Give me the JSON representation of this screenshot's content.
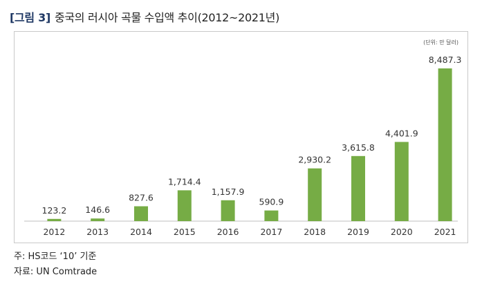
{
  "figure": {
    "label": "[그림 3]",
    "title": "중국의 러시아 곡물 수입액 추이(2012~2021년)"
  },
  "unit_label": "(단위: 만 달러)",
  "notes": {
    "note": "주: HS코드 ‘10’ 기준",
    "source": "자료: UN Comtrade"
  },
  "colors": {
    "bar": "#76ac45",
    "axis": "#bfbfbf",
    "frame": "#c9c9c9"
  },
  "chart_data": {
    "type": "bar",
    "categories": [
      "2012",
      "2013",
      "2014",
      "2015",
      "2016",
      "2017",
      "2018",
      "2019",
      "2020",
      "2021"
    ],
    "values": [
      123.2,
      146.6,
      827.6,
      1714.4,
      1157.9,
      590.9,
      2930.2,
      3615.8,
      4401.9,
      8487.3
    ],
    "value_labels": [
      "123.2",
      "146.6",
      "827.6",
      "1,714.4",
      "1,157.9",
      "590.9",
      "2,930.2",
      "3,615.8",
      "4,401.9",
      "8,487.3"
    ],
    "title": "",
    "xlabel": "",
    "ylabel": "",
    "ylim": [
      0,
      8487.3
    ],
    "grid": false,
    "legend": "none"
  }
}
